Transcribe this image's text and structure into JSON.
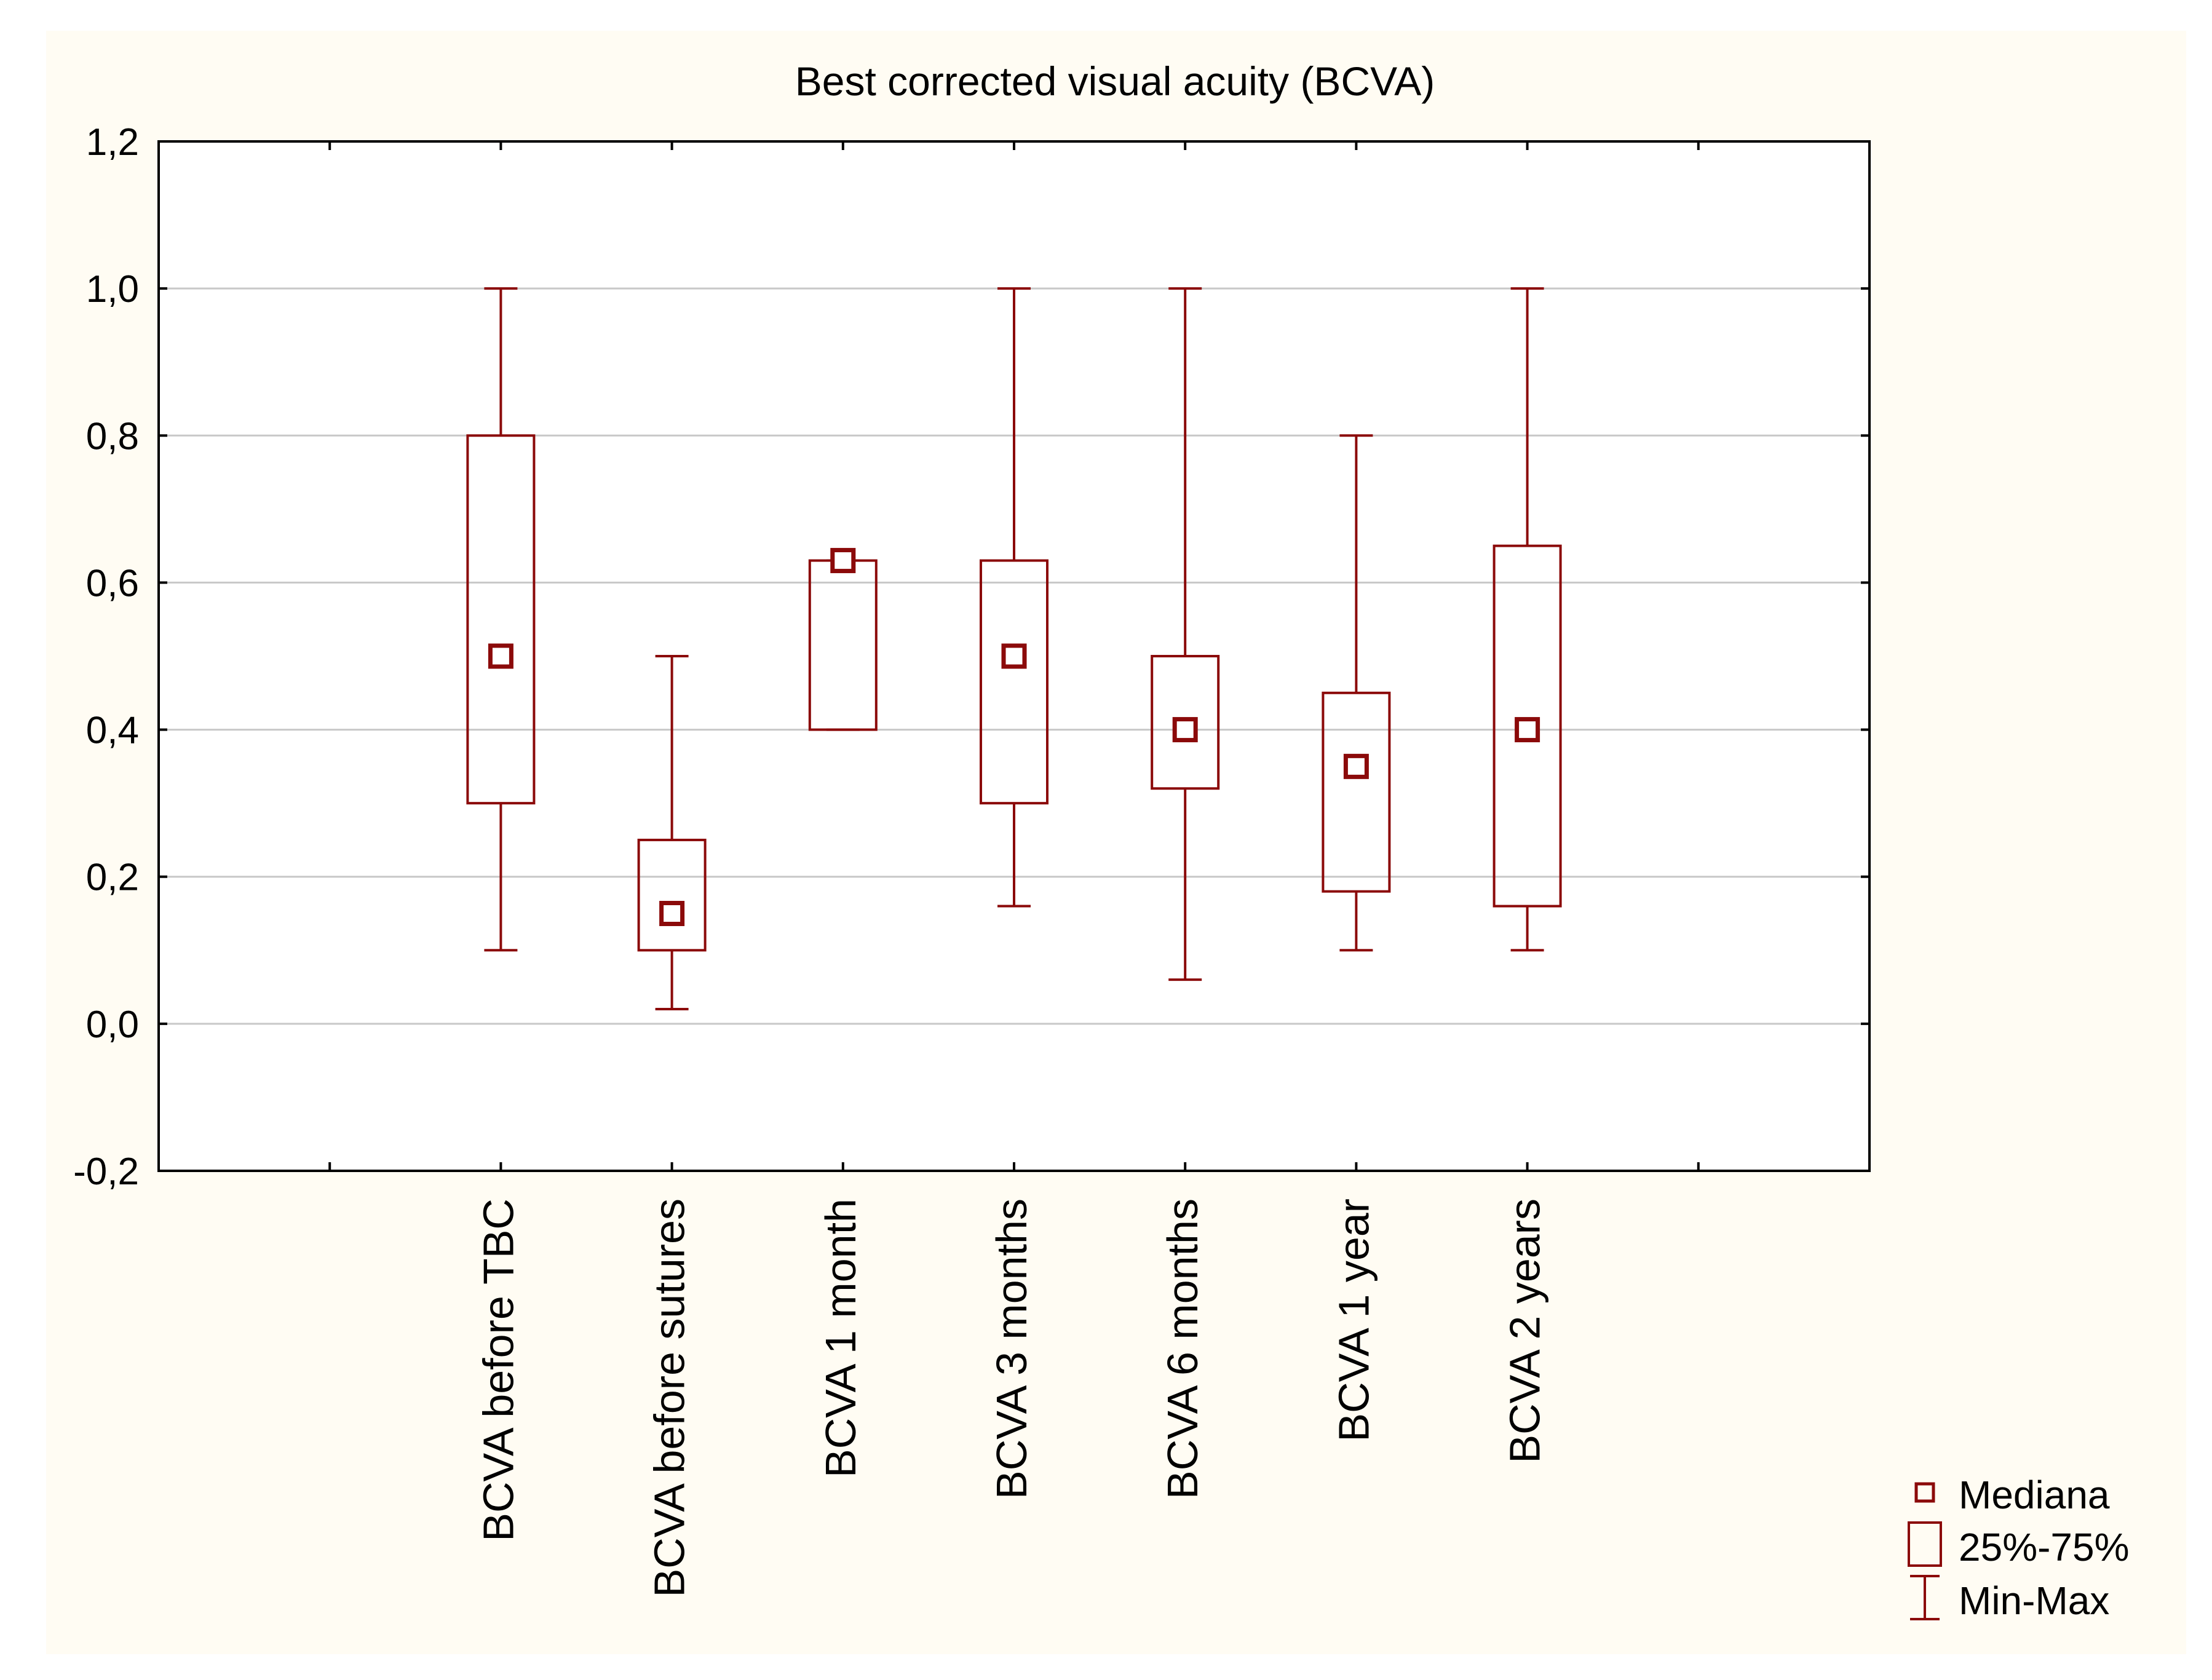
{
  "chart_data": {
    "type": "box",
    "title": "Best corrected visual acuity (BCVA)",
    "xlabel": "",
    "ylabel": "",
    "ylim": [
      -0.2,
      1.2
    ],
    "y_ticks": [
      {
        "value": -0.2,
        "label": "-0,2"
      },
      {
        "value": 0.0,
        "label": "0,0"
      },
      {
        "value": 0.2,
        "label": "0,2"
      },
      {
        "value": 0.4,
        "label": "0,4"
      },
      {
        "value": 0.6,
        "label": "0,6"
      },
      {
        "value": 0.8,
        "label": "0,8"
      },
      {
        "value": 1.0,
        "label": "1,0"
      },
      {
        "value": 1.2,
        "label": "1,2"
      }
    ],
    "grid": "horizontal",
    "x_slots": 10,
    "categories": [
      "BCVA before TBC",
      "BCVA before sutures",
      "BCVA 1 month",
      "BCVA 3 months",
      "BCVA 6 months",
      "BCVA 1 year",
      "BCVA 2 years"
    ],
    "boxes": [
      {
        "min": 0.1,
        "q1": 0.3,
        "median": 0.5,
        "q3": 0.8,
        "max": 1.0
      },
      {
        "min": 0.02,
        "q1": 0.1,
        "median": 0.15,
        "q3": 0.25,
        "max": 0.5
      },
      {
        "min": 0.4,
        "q1": 0.4,
        "median": 0.63,
        "q3": 0.63,
        "max": 0.63
      },
      {
        "min": 0.16,
        "q1": 0.3,
        "median": 0.5,
        "q3": 0.63,
        "max": 1.0
      },
      {
        "min": 0.06,
        "q1": 0.32,
        "median": 0.4,
        "q3": 0.5,
        "max": 1.0
      },
      {
        "min": 0.1,
        "q1": 0.18,
        "median": 0.35,
        "q3": 0.45,
        "max": 0.8
      },
      {
        "min": 0.1,
        "q1": 0.16,
        "median": 0.4,
        "q3": 0.65,
        "max": 1.0
      }
    ],
    "legend": {
      "position": "bottom-right",
      "items": [
        {
          "symbol": "median-square",
          "label": "Mediana"
        },
        {
          "symbol": "box",
          "label": "25%-75%"
        },
        {
          "symbol": "whisker",
          "label": "Min-Max"
        }
      ]
    },
    "colors": {
      "series": "#8b0a0a",
      "background": "#fffcf3",
      "plot_background": "#ffffff",
      "grid": "#c8c8c8",
      "axis": "#000000"
    }
  }
}
